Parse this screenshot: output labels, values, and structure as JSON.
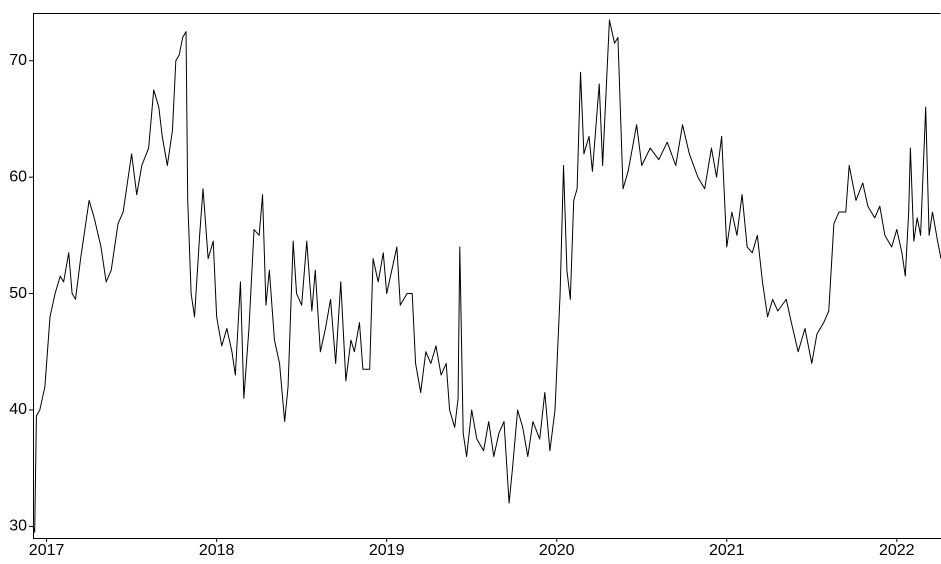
{
  "chart_data": {
    "type": "line",
    "x": [
      2016.92,
      2016.93,
      2016.94,
      2016.96,
      2016.99,
      2017.02,
      2017.05,
      2017.08,
      2017.1,
      2017.13,
      2017.15,
      2017.17,
      2017.2,
      2017.25,
      2017.28,
      2017.32,
      2017.35,
      2017.38,
      2017.42,
      2017.45,
      2017.48,
      2017.5,
      2017.53,
      2017.56,
      2017.6,
      2017.63,
      2017.66,
      2017.68,
      2017.71,
      2017.74,
      2017.76,
      2017.78,
      2017.8,
      2017.82,
      2017.83,
      2017.85,
      2017.87,
      2017.9,
      2017.92,
      2017.95,
      2017.98,
      2018.0,
      2018.03,
      2018.06,
      2018.09,
      2018.11,
      2018.14,
      2018.16,
      2018.19,
      2018.22,
      2018.25,
      2018.27,
      2018.29,
      2018.31,
      2018.34,
      2018.37,
      2018.4,
      2018.42,
      2018.45,
      2018.47,
      2018.5,
      2018.53,
      2018.56,
      2018.58,
      2018.61,
      2018.64,
      2018.67,
      2018.7,
      2018.73,
      2018.76,
      2018.79,
      2018.81,
      2018.84,
      2018.86,
      2018.9,
      2018.92,
      2018.95,
      2018.98,
      2019.0,
      2019.03,
      2019.06,
      2019.08,
      2019.12,
      2019.15,
      2019.17,
      2019.2,
      2019.23,
      2019.26,
      2019.29,
      2019.32,
      2019.35,
      2019.37,
      2019.4,
      2019.42,
      2019.43,
      2019.45,
      2019.47,
      2019.5,
      2019.53,
      2019.57,
      2019.6,
      2019.63,
      2019.66,
      2019.69,
      2019.72,
      2019.74,
      2019.77,
      2019.8,
      2019.83,
      2019.86,
      2019.9,
      2019.93,
      2019.96,
      2019.99,
      2020.02,
      2020.04,
      2020.06,
      2020.08,
      2020.1,
      2020.12,
      2020.14,
      2020.16,
      2020.19,
      2020.21,
      2020.25,
      2020.27,
      2020.31,
      2020.34,
      2020.36,
      2020.39,
      2020.42,
      2020.47,
      2020.5,
      2020.55,
      2020.6,
      2020.65,
      2020.7,
      2020.74,
      2020.78,
      2020.83,
      2020.87,
      2020.91,
      2020.94,
      2020.97,
      2021.0,
      2021.03,
      2021.06,
      2021.09,
      2021.12,
      2021.15,
      2021.18,
      2021.21,
      2021.24,
      2021.27,
      2021.3,
      2021.35,
      2021.38,
      2021.42,
      2021.46,
      2021.5,
      2021.53,
      2021.57,
      2021.6,
      2021.63,
      2021.66,
      2021.7,
      2021.72,
      2021.76,
      2021.8,
      2021.83,
      2021.87,
      2021.9,
      2021.93,
      2021.97,
      2022.0,
      2022.03,
      2022.05,
      2022.07,
      2022.08,
      2022.1,
      2022.12,
      2022.14,
      2022.17,
      2022.19,
      2022.21,
      2022.24,
      2022.26
    ],
    "series": [
      {
        "color": "#000000",
        "values": [
          30,
          29.5,
          39.5,
          40,
          42,
          48,
          50,
          51.5,
          51,
          53.5,
          50,
          49.5,
          53,
          58,
          56.5,
          54,
          51,
          52,
          56,
          57,
          60,
          62,
          58.5,
          61,
          62.5,
          67.5,
          66,
          63.5,
          61,
          64,
          70,
          70.5,
          72,
          72.5,
          58,
          50,
          48,
          55,
          59,
          53,
          54.5,
          48,
          45.5,
          47,
          45,
          43,
          51,
          41,
          47,
          55.5,
          55,
          58.5,
          49,
          52,
          46,
          44,
          39,
          42,
          54.5,
          50,
          49,
          54.5,
          48.5,
          52,
          45,
          47,
          49.5,
          44,
          51,
          42.5,
          46,
          45,
          47.5,
          43.5,
          43.5,
          53,
          51,
          53.5,
          50,
          52,
          54,
          49,
          50,
          50,
          44,
          41.5,
          45,
          44,
          45.5,
          43,
          44,
          40,
          38.5,
          41,
          54,
          38,
          36,
          40,
          37.5,
          36.5,
          39,
          36,
          38,
          39,
          32,
          35,
          40,
          38.5,
          36,
          39,
          37.5,
          41.5,
          36.5,
          40,
          50,
          61,
          52,
          49.5,
          58,
          59,
          69,
          62,
          63.5,
          60.5,
          68,
          61,
          73.5,
          71.5,
          72,
          59,
          60.5,
          64.5,
          61,
          62.5,
          61.5,
          63,
          61,
          64.5,
          62,
          60,
          59,
          62.5,
          60,
          63.5,
          54,
          57,
          55,
          58.5,
          54,
          53.5,
          55,
          51,
          48,
          49.5,
          48.5,
          49.5,
          47.5,
          45,
          47,
          44,
          46.5,
          47.5,
          48.5,
          56,
          57,
          57,
          61,
          58,
          59.5,
          57.5,
          56.5,
          57.5,
          55,
          54,
          55.5,
          53.5,
          51.5,
          57,
          62.5,
          54.5,
          56.5,
          55,
          66,
          55,
          57,
          54.5,
          53
        ]
      }
    ],
    "xlim": [
      2016.92,
      2022.26
    ],
    "xticks": [
      2017,
      2018,
      2019,
      2020,
      2021,
      2022
    ],
    "ylim": [
      29,
      74.1
    ],
    "yticks": [
      30,
      40,
      50,
      60,
      70
    ]
  }
}
